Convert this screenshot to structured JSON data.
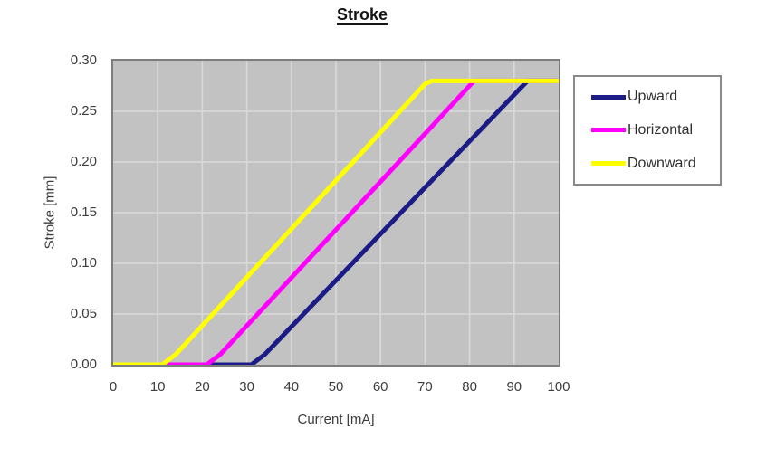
{
  "title": "Stroke",
  "chart_data": {
    "type": "line",
    "title": "Stroke",
    "xlabel": "Current [mA]",
    "ylabel": "Stroke [mm]",
    "xlim": [
      0,
      100
    ],
    "ylim": [
      0,
      0.3
    ],
    "x_ticks": [
      0,
      10,
      20,
      30,
      40,
      50,
      60,
      70,
      80,
      90,
      100
    ],
    "y_ticks": [
      {
        "value": 0.0,
        "label": "0.00"
      },
      {
        "value": 0.05,
        "label": "0.05"
      },
      {
        "value": 0.1,
        "label": "0.10"
      },
      {
        "value": 0.15,
        "label": "0.15"
      },
      {
        "value": 0.2,
        "label": "0.20"
      },
      {
        "value": 0.25,
        "label": "0.25"
      },
      {
        "value": 0.3,
        "label": "0.30"
      }
    ],
    "grid": true,
    "legend_position": "right",
    "plot_bg_color": "#c2c2c2",
    "grid_color": "#d9d9d9",
    "plot_border_color": "#7d7d7d",
    "series": [
      {
        "name": "Upward",
        "color": "#1c1c87",
        "points": [
          [
            0,
            0
          ],
          [
            31,
            0
          ],
          [
            34,
            0.01
          ],
          [
            93,
            0.28
          ],
          [
            100,
            0.28
          ]
        ]
      },
      {
        "name": "Horizontal",
        "color": "#ff00ff",
        "points": [
          [
            0,
            0
          ],
          [
            21,
            0
          ],
          [
            24,
            0.01
          ],
          [
            81,
            0.28
          ],
          [
            100,
            0.28
          ]
        ]
      },
      {
        "name": "Downward",
        "color": "#ffff00",
        "points": [
          [
            0,
            0
          ],
          [
            11,
            0
          ],
          [
            14,
            0.01
          ],
          [
            70,
            0.277
          ],
          [
            71.5,
            0.28
          ],
          [
            100,
            0.28
          ]
        ]
      }
    ]
  }
}
